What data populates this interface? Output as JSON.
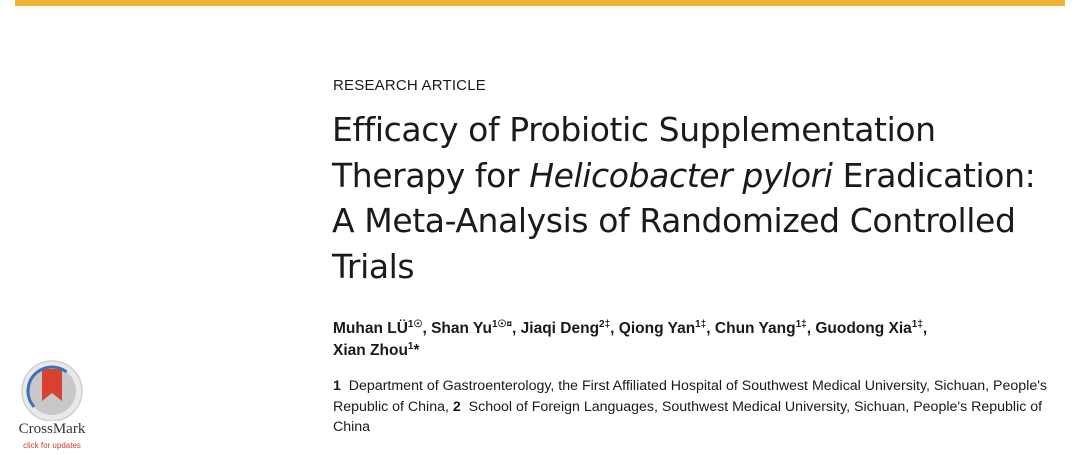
{
  "header": {
    "article_type": "RESEARCH ARTICLE",
    "accent_color": "#f2b233"
  },
  "title": {
    "part1": "Efficacy of Probiotic Supplementation Therapy for ",
    "italic": "Helicobacter pylori",
    "part2": " Eradication: A Meta-Analysis of Randomized Controlled Trials"
  },
  "authors": [
    {
      "name": "Muhan LÜ",
      "sup": "1☉",
      "sep": ", "
    },
    {
      "name": "Shan Yu",
      "sup": "1☉¤",
      "sep": ", "
    },
    {
      "name": "Jiaqi Deng",
      "sup": "2‡",
      "sep": ", "
    },
    {
      "name": "Qiong Yan",
      "sup": "1‡",
      "sep": ", "
    },
    {
      "name": "Chun Yang",
      "sup": "1‡",
      "sep": ", "
    },
    {
      "name": "Guodong Xia",
      "sup": "1‡",
      "sep": ", "
    },
    {
      "name": "Xian Zhou",
      "sup": "1",
      "sep": "*"
    }
  ],
  "affiliations": [
    {
      "num": "1",
      "text": "Department of Gastroenterology, the First Affiliated Hospital of Southwest Medical University, Sichuan, People's Republic of China,"
    },
    {
      "num": "2",
      "text": "School of Foreign Languages, Southwest Medical University, Sichuan, People's Republic of China"
    }
  ],
  "crossmark": {
    "label": "CrossMark",
    "sublabel": "click for updates",
    "icon": "crossmark-icon"
  }
}
